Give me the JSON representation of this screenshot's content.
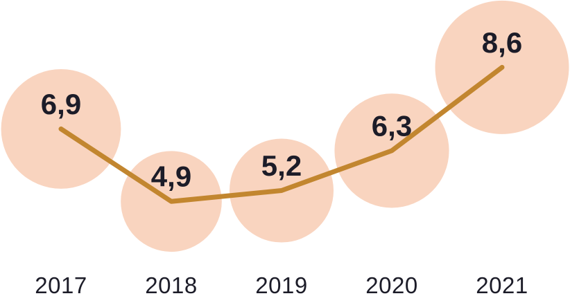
{
  "chart_data": {
    "type": "line",
    "variant": "bubble-line",
    "categories": [
      "2017",
      "2018",
      "2019",
      "2020",
      "2021"
    ],
    "values": [
      6.9,
      4.9,
      5.2,
      6.3,
      8.6
    ],
    "value_labels": [
      "6,9",
      "4,9",
      "5,2",
      "6,3",
      "8,6"
    ],
    "title": "",
    "xlabel": "",
    "ylabel": "",
    "ylim": [
      4.0,
      9.5
    ],
    "grid": false,
    "axes_visible": false,
    "legend": "none",
    "marker_sizing": "area-proportional",
    "colors": {
      "background": "#ffffff",
      "bubble_fill": "#f9d4bf",
      "line": "#c2862f",
      "value_text": "#1c1c28",
      "axis_text": "#1c1c28"
    }
  }
}
